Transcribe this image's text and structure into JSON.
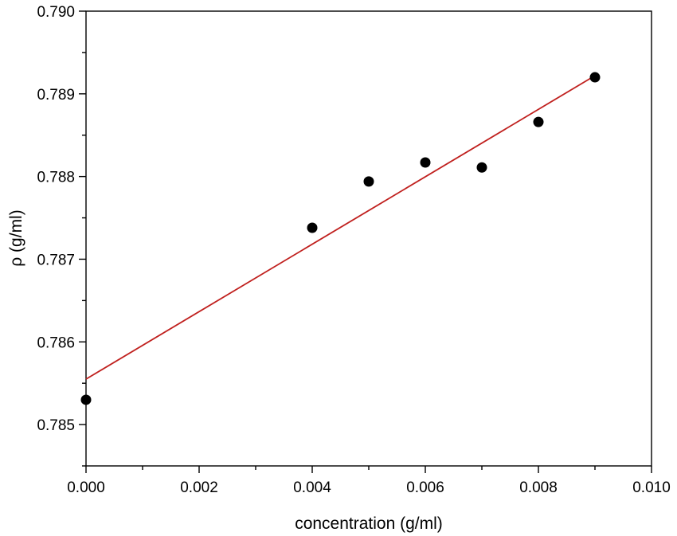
{
  "chart_data": {
    "type": "scatter",
    "title": "",
    "xlabel": "concentration (g/ml)",
    "ylabel": "ρ (g/ml)",
    "xlim": [
      0.0,
      0.01
    ],
    "ylim": [
      0.7845,
      0.79
    ],
    "x_ticks": [
      "0.000",
      "0.002",
      "0.004",
      "0.006",
      "0.008",
      "0.010"
    ],
    "y_ticks": [
      "0.785",
      "0.786",
      "0.787",
      "0.788",
      "0.789",
      "0.790"
    ],
    "grid": false,
    "legend": "none",
    "series": [
      {
        "marker_color": "#000000",
        "points": [
          {
            "x": 0.0,
            "y": 0.7853
          },
          {
            "x": 0.004,
            "y": 0.78738
          },
          {
            "x": 0.005,
            "y": 0.78794
          },
          {
            "x": 0.006,
            "y": 0.78817
          },
          {
            "x": 0.007,
            "y": 0.78811
          },
          {
            "x": 0.008,
            "y": 0.78866
          },
          {
            "x": 0.009,
            "y": 0.7892
          }
        ]
      }
    ],
    "fit_line": {
      "color": "#c0201e",
      "x": [
        0.0,
        0.009
      ],
      "y": [
        0.78555,
        0.78922
      ]
    }
  }
}
